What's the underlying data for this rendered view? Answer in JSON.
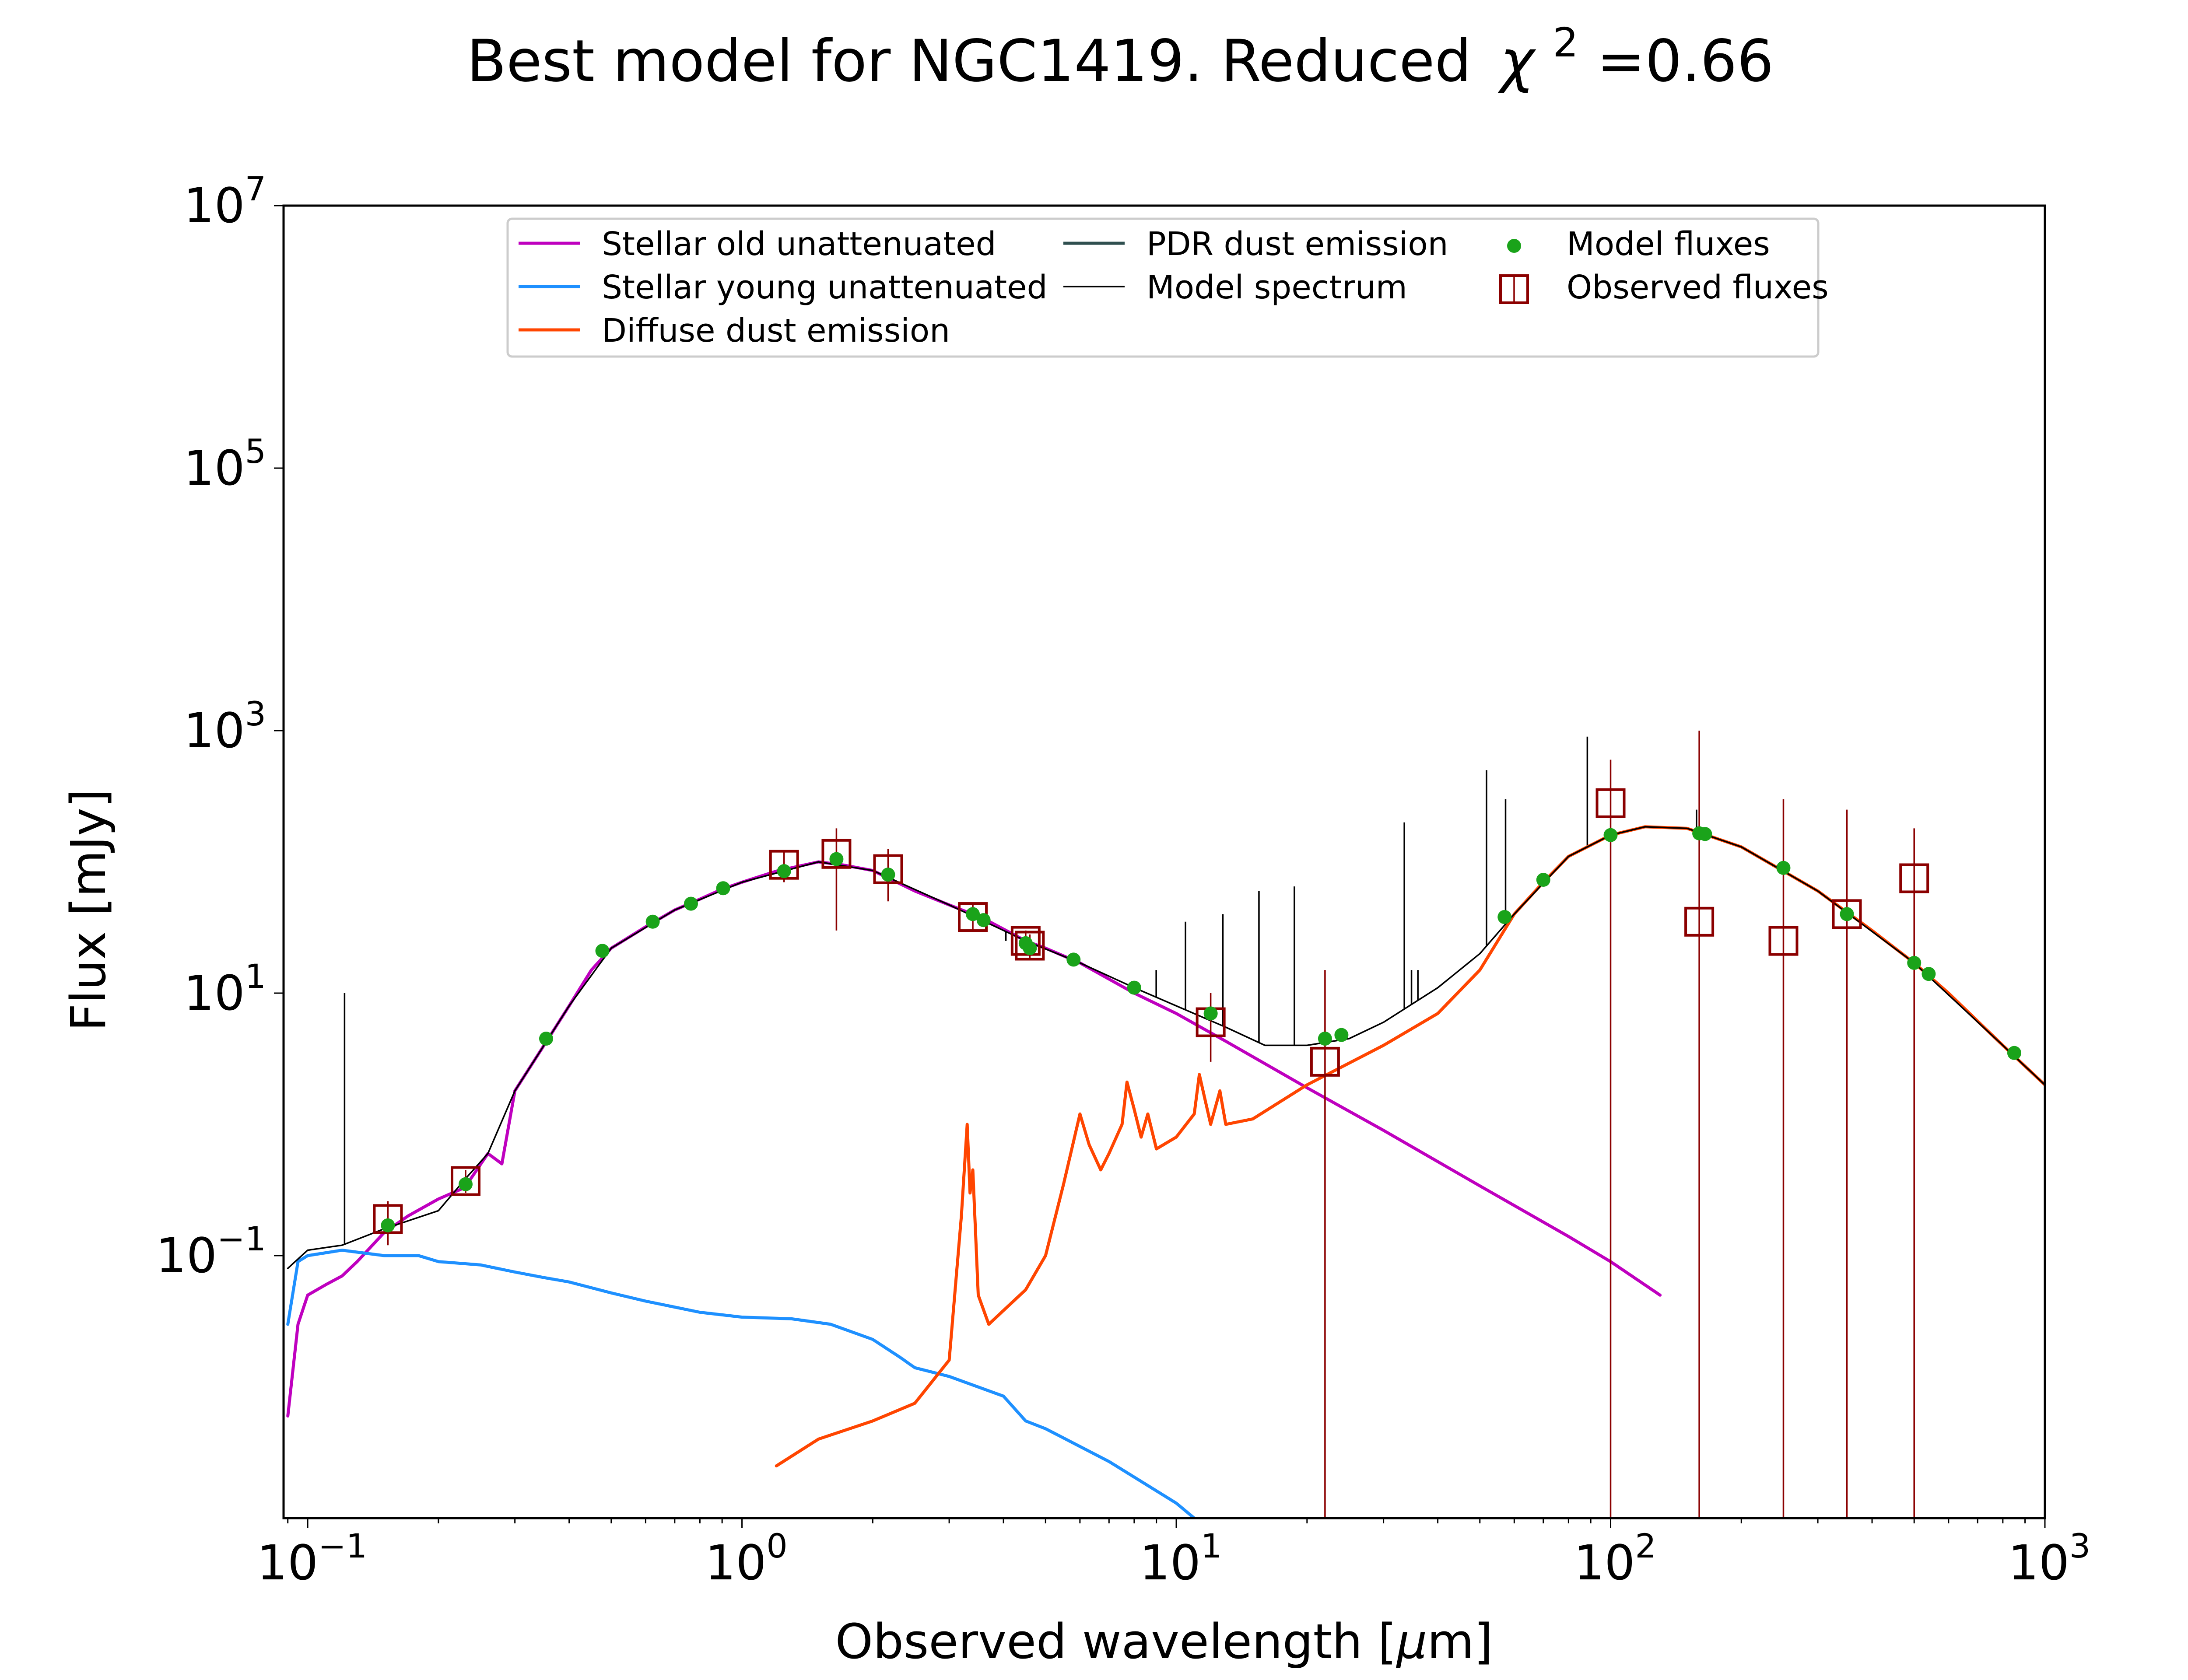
{
  "chart_data": {
    "type": "line",
    "title": "Best model for NGC1419. Reduced",
    "title_chi_symbol": "χ",
    "title_chi_exponent": "2",
    "title_chi_value": "=0.66",
    "xlabel_text": "Observed wavelength [",
    "xlabel_mu": "μ",
    "xlabel_unit": "m]",
    "ylabel": "Flux [mJy]",
    "x_scale": "log",
    "y_scale": "log",
    "xlim": [
      0.088,
      1000
    ],
    "ylim": [
      0.001,
      10000000
    ],
    "x_ticks": [
      {
        "value": 0.1,
        "base": "10",
        "exp": "−1"
      },
      {
        "value": 1,
        "base": "10",
        "exp": "0"
      },
      {
        "value": 10,
        "base": "10",
        "exp": "1"
      },
      {
        "value": 100,
        "base": "10",
        "exp": "2"
      },
      {
        "value": 1000,
        "base": "10",
        "exp": "3"
      }
    ],
    "y_ticks": [
      {
        "value": 0.1,
        "base": "10",
        "exp": "−1"
      },
      {
        "value": 10,
        "base": "10",
        "exp": "1"
      },
      {
        "value": 1000,
        "base": "10",
        "exp": "3"
      },
      {
        "value": 100000,
        "base": "10",
        "exp": "5"
      },
      {
        "value": 10000000,
        "base": "10",
        "exp": "7"
      }
    ],
    "grid": false,
    "legend_position": "top-center",
    "legend": [
      {
        "label": "Stellar old unattenuated",
        "color": "#bf00bf",
        "kind": "line"
      },
      {
        "label": "Stellar young unattenuated",
        "color": "#1e90ff",
        "kind": "line"
      },
      {
        "label": "Diffuse dust emission",
        "color": "#ff4500",
        "kind": "line"
      },
      {
        "label": "PDR dust emission",
        "color": "#2f4f4f",
        "kind": "line"
      },
      {
        "label": "Model spectrum",
        "color": "#000000",
        "kind": "thinline"
      },
      {
        "label": "Model fluxes",
        "color": "#1aa31a",
        "kind": "dot"
      },
      {
        "label": "Observed fluxes",
        "color": "#8b0000",
        "kind": "square"
      }
    ],
    "series": [
      {
        "name": "Stellar old unattenuated",
        "color": "#bf00bf",
        "points": [
          [
            0.09,
            0.006
          ],
          [
            0.095,
            0.03
          ],
          [
            0.1,
            0.05
          ],
          [
            0.11,
            0.06
          ],
          [
            0.12,
            0.07
          ],
          [
            0.13,
            0.09
          ],
          [
            0.15,
            0.15
          ],
          [
            0.17,
            0.2
          ],
          [
            0.2,
            0.27
          ],
          [
            0.23,
            0.33
          ],
          [
            0.26,
            0.6
          ],
          [
            0.28,
            0.5
          ],
          [
            0.3,
            1.8
          ],
          [
            0.35,
            4
          ],
          [
            0.4,
            8
          ],
          [
            0.45,
            15
          ],
          [
            0.5,
            22
          ],
          [
            0.6,
            32
          ],
          [
            0.7,
            43
          ],
          [
            0.8,
            52
          ],
          [
            0.9,
            62
          ],
          [
            1.0,
            70
          ],
          [
            1.2,
            85
          ],
          [
            1.5,
            100
          ],
          [
            1.7,
            95
          ],
          [
            2.0,
            86
          ],
          [
            2.5,
            60
          ],
          [
            3.0,
            47
          ],
          [
            3.6,
            37
          ],
          [
            4.5,
            25
          ],
          [
            5.0,
            22
          ],
          [
            6.0,
            17
          ],
          [
            8.0,
            10
          ],
          [
            10,
            7
          ],
          [
            13,
            4.3
          ],
          [
            20,
            1.9
          ],
          [
            30,
            0.9
          ],
          [
            50,
            0.34
          ],
          [
            80,
            0.14
          ],
          [
            100,
            0.09
          ],
          [
            130,
            0.05
          ]
        ]
      },
      {
        "name": "Stellar young unattenuated",
        "color": "#1e90ff",
        "points": [
          [
            0.09,
            0.03
          ],
          [
            0.095,
            0.09
          ],
          [
            0.1,
            0.1
          ],
          [
            0.12,
            0.11
          ],
          [
            0.15,
            0.1
          ],
          [
            0.18,
            0.1
          ],
          [
            0.2,
            0.09
          ],
          [
            0.25,
            0.085
          ],
          [
            0.3,
            0.075
          ],
          [
            0.35,
            0.068
          ],
          [
            0.4,
            0.063
          ],
          [
            0.5,
            0.052
          ],
          [
            0.6,
            0.045
          ],
          [
            0.8,
            0.037
          ],
          [
            1.0,
            0.034
          ],
          [
            1.3,
            0.033
          ],
          [
            1.6,
            0.03
          ],
          [
            2.0,
            0.023
          ],
          [
            2.3,
            0.017
          ],
          [
            2.5,
            0.014
          ],
          [
            3.0,
            0.012
          ],
          [
            4.0,
            0.0085
          ],
          [
            4.5,
            0.0055
          ],
          [
            5.0,
            0.0048
          ],
          [
            7.0,
            0.0027
          ],
          [
            10,
            0.0013
          ],
          [
            11,
            0.001
          ]
        ]
      },
      {
        "name": "Diffuse dust emission",
        "color": "#ff4500",
        "points": [
          [
            1.2,
            0.0025
          ],
          [
            1.5,
            0.004
          ],
          [
            2.0,
            0.0055
          ],
          [
            2.5,
            0.0075
          ],
          [
            3.0,
            0.016
          ],
          [
            3.2,
            0.2
          ],
          [
            3.3,
            1.0
          ],
          [
            3.35,
            0.3
          ],
          [
            3.4,
            0.45
          ],
          [
            3.5,
            0.05
          ],
          [
            3.7,
            0.03
          ],
          [
            4.5,
            0.055
          ],
          [
            5.0,
            0.1
          ],
          [
            5.5,
            0.35
          ],
          [
            6.0,
            1.2
          ],
          [
            6.3,
            0.7
          ],
          [
            6.7,
            0.45
          ],
          [
            7.0,
            0.6
          ],
          [
            7.5,
            1.0
          ],
          [
            7.7,
            2.1
          ],
          [
            8.0,
            1.3
          ],
          [
            8.3,
            0.8
          ],
          [
            8.6,
            1.2
          ],
          [
            9.0,
            0.65
          ],
          [
            10,
            0.8
          ],
          [
            11.0,
            1.2
          ],
          [
            11.3,
            2.4
          ],
          [
            12.0,
            1.0
          ],
          [
            12.6,
            1.8
          ],
          [
            13.0,
            1.0
          ],
          [
            15,
            1.1
          ],
          [
            20,
            2.0
          ],
          [
            30,
            4.0
          ],
          [
            40,
            7.0
          ],
          [
            50,
            15
          ],
          [
            60,
            40
          ],
          [
            70,
            70
          ],
          [
            80,
            110
          ],
          [
            100,
            160
          ],
          [
            120,
            185
          ],
          [
            150,
            180
          ],
          [
            200,
            130
          ],
          [
            300,
            60
          ],
          [
            400,
            30
          ],
          [
            500,
            17
          ],
          [
            600,
            10
          ],
          [
            800,
            4
          ],
          [
            1000,
            2
          ]
        ]
      },
      {
        "name": "Model spectrum",
        "color": "#000000",
        "points": [
          [
            0.09,
            0.08
          ],
          [
            0.1,
            0.11
          ],
          [
            0.12,
            0.12
          ],
          [
            0.15,
            0.16
          ],
          [
            0.2,
            0.22
          ],
          [
            0.23,
            0.38
          ],
          [
            0.26,
            0.6
          ],
          [
            0.3,
            1.8
          ],
          [
            0.35,
            4
          ],
          [
            0.4,
            8
          ],
          [
            0.5,
            22
          ],
          [
            0.7,
            43
          ],
          [
            1.0,
            70
          ],
          [
            1.5,
            100
          ],
          [
            2.0,
            86
          ],
          [
            3.0,
            47
          ],
          [
            4.5,
            25
          ],
          [
            6.0,
            17
          ],
          [
            8.0,
            11
          ],
          [
            10,
            8
          ],
          [
            13,
            5.5
          ],
          [
            16,
            4
          ],
          [
            20,
            4
          ],
          [
            25,
            4.5
          ],
          [
            30,
            6
          ],
          [
            40,
            11
          ],
          [
            50,
            20
          ],
          [
            60,
            40
          ],
          [
            80,
            110
          ],
          [
            100,
            160
          ],
          [
            120,
            185
          ],
          [
            150,
            180
          ],
          [
            200,
            130
          ],
          [
            300,
            60
          ],
          [
            500,
            17
          ],
          [
            800,
            4
          ],
          [
            1000,
            2
          ]
        ]
      }
    ],
    "emission_lines": [
      {
        "x": 0.1216,
        "y_top": 10
      },
      {
        "x": 4.05,
        "y_top": 25
      },
      {
        "x": 4.05,
        "y_top": 25
      },
      {
        "x": 8.99,
        "y_top": 15
      },
      {
        "x": 10.5,
        "y_top": 35
      },
      {
        "x": 12.8,
        "y_top": 40
      },
      {
        "x": 15.5,
        "y_top": 60
      },
      {
        "x": 18.7,
        "y_top": 65
      },
      {
        "x": 33.5,
        "y_top": 200
      },
      {
        "x": 34.8,
        "y_top": 15
      },
      {
        "x": 36.0,
        "y_top": 15
      },
      {
        "x": 51.8,
        "y_top": 500
      },
      {
        "x": 57.3,
        "y_top": 300
      },
      {
        "x": 88.4,
        "y_top": 900
      },
      {
        "x": 157.7,
        "y_top": 250
      }
    ],
    "model_fluxes": [
      [
        0.153,
        0.17
      ],
      [
        0.231,
        0.35
      ],
      [
        0.354,
        4.5
      ],
      [
        0.477,
        21
      ],
      [
        0.623,
        35
      ],
      [
        0.763,
        48
      ],
      [
        0.905,
        63
      ],
      [
        1.25,
        85
      ],
      [
        1.65,
        105
      ],
      [
        2.17,
        80
      ],
      [
        3.4,
        40
      ],
      [
        3.6,
        36
      ],
      [
        4.5,
        24
      ],
      [
        4.6,
        22
      ],
      [
        5.8,
        18
      ],
      [
        8.0,
        11
      ],
      [
        12.0,
        7
      ],
      [
        22.0,
        4.5
      ],
      [
        24.0,
        4.8
      ],
      [
        57.0,
        38
      ],
      [
        70.0,
        73
      ],
      [
        100,
        160
      ],
      [
        160,
        165
      ],
      [
        165,
        163
      ],
      [
        250,
        90
      ],
      [
        350,
        40
      ],
      [
        500,
        17
      ],
      [
        540,
        14
      ],
      [
        850,
        3.5
      ]
    ],
    "observed_fluxes": [
      {
        "x": 0.153,
        "y": 0.19,
        "lo": 0.12,
        "hi": 0.26
      },
      {
        "x": 0.231,
        "y": 0.37,
        "lo": 0.3,
        "hi": 0.45
      },
      {
        "x": 1.25,
        "y": 95,
        "lo": 70,
        "hi": 120
      },
      {
        "x": 1.65,
        "y": 115,
        "lo": 30,
        "hi": 180
      },
      {
        "x": 2.17,
        "y": 88,
        "lo": 50,
        "hi": 125
      },
      {
        "x": 3.4,
        "y": 38,
        "lo": 30,
        "hi": 48
      },
      {
        "x": 4.5,
        "y": 25,
        "lo": 20,
        "hi": 30
      },
      {
        "x": 4.6,
        "y": 23,
        "lo": 18,
        "hi": 28
      },
      {
        "x": 12.0,
        "y": 6.0,
        "lo": 3.0,
        "hi": 10.0
      },
      {
        "x": 22.0,
        "y": 3.0,
        "lo": 0.001,
        "hi": 15
      },
      {
        "x": 100,
        "y": 280,
        "lo": 0.001,
        "hi": 600
      },
      {
        "x": 160,
        "y": 35,
        "lo": 0.001,
        "hi": 1000
      },
      {
        "x": 250,
        "y": 25,
        "lo": 0.001,
        "hi": 300
      },
      {
        "x": 350,
        "y": 40,
        "lo": 0.001,
        "hi": 250
      },
      {
        "x": 500,
        "y": 75,
        "lo": 0.001,
        "hi": 180
      }
    ],
    "colors": {
      "model_flux": "#1aa31a",
      "observed_flux": "#8b0000",
      "model_spectrum": "#000000"
    }
  }
}
